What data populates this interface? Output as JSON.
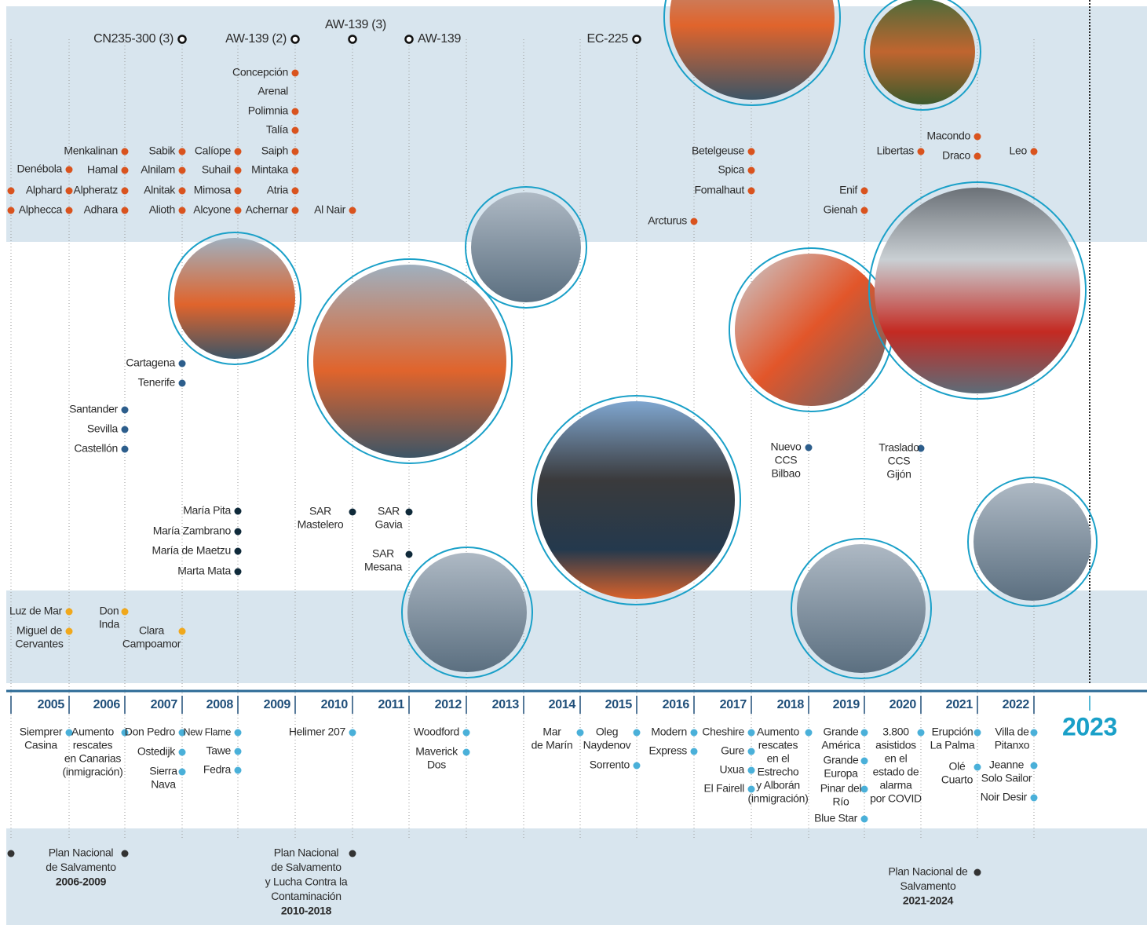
{
  "aircraft": [
    [
      "CN235-300 (3)"
    ],
    [
      "AW-139 (2)"
    ],
    [
      "AW-139 (3)"
    ],
    [
      "AW-139"
    ],
    [
      "EC-225"
    ]
  ],
  "vessels": [
    [
      "Denébola"
    ],
    [
      "Alphard"
    ],
    [
      "Alphecca"
    ],
    [
      "Menkalinan"
    ],
    [
      "Hamal"
    ],
    [
      "Alpheratz"
    ],
    [
      "Adhara"
    ],
    [
      "Sabik"
    ],
    [
      "Alnilam"
    ],
    [
      "Alnitak"
    ],
    [
      "Alioth"
    ],
    [
      "Calíope"
    ],
    [
      "Suhail"
    ],
    [
      "Mimosa"
    ],
    [
      "Alcyone"
    ],
    [
      "Concepción"
    ],
    [
      "Arenal"
    ],
    [
      "Polimnia"
    ],
    [
      "Talía"
    ],
    [
      "Saiph"
    ],
    [
      "Mintaka"
    ],
    [
      "Atria"
    ],
    [
      "Achernar"
    ],
    [
      "Al Nair"
    ],
    [
      "Arcturus"
    ],
    [
      "Betelgeuse"
    ],
    [
      "Spica"
    ],
    [
      "Fomalhaut"
    ],
    [
      "Enif"
    ],
    [
      "Gienah"
    ],
    [
      "Libertas"
    ],
    [
      "Macondo"
    ],
    [
      "Draco"
    ],
    [
      "Leo"
    ]
  ],
  "bases": [
    [
      "Cartagena"
    ],
    [
      "Tenerife"
    ],
    [
      "Santander"
    ],
    [
      "Sevilla"
    ],
    [
      "Castellón"
    ],
    [
      "Nuevo",
      "CCS",
      "Bilbao"
    ],
    [
      "Traslado",
      "CCS",
      "Gijón"
    ]
  ],
  "sar_boats": [
    [
      "María Pita"
    ],
    [
      "María Zambrano"
    ],
    [
      "María de Maetzu"
    ],
    [
      "Marta Mata"
    ],
    [
      "SAR",
      "Mastelero"
    ],
    [
      "SAR",
      "Gavia"
    ],
    [
      "SAR",
      "Mesana"
    ]
  ],
  "rescue_vessels": [
    [
      "Luz de Mar"
    ],
    [
      "Miguel de",
      "Cervantes"
    ],
    [
      "Don",
      "Inda"
    ],
    [
      "Clara",
      "Campoamor"
    ]
  ],
  "years": [
    "2005",
    "2006",
    "2007",
    "2008",
    "2009",
    "2010",
    "2011",
    "2012",
    "2013",
    "2014",
    "2015",
    "2016",
    "2017",
    "2018",
    "2019",
    "2020",
    "2021",
    "2022"
  ],
  "current_year": "2023",
  "events": [
    [
      "Siemprer",
      "Casina"
    ],
    [
      "Aumento",
      "rescates",
      "en Canarias",
      "(inmigración)"
    ],
    [
      "Don Pedro"
    ],
    [
      "Ostedijk"
    ],
    [
      "Sierra",
      "Nava"
    ],
    [
      "New Flame"
    ],
    [
      "Tawe"
    ],
    [
      "Fedra"
    ],
    [
      "Helimer 207"
    ],
    [
      "Woodford"
    ],
    [
      "Maverick",
      "Dos"
    ],
    [
      "Mar",
      "de Marín"
    ],
    [
      "Oleg",
      "Naydenov"
    ],
    [
      "Sorrento"
    ],
    [
      "Modern"
    ],
    [
      "Express"
    ],
    [
      "Cheshire"
    ],
    [
      "Gure"
    ],
    [
      "Uxua"
    ],
    [
      "El Fairell"
    ],
    [
      "Aumento",
      "rescates",
      "en el",
      "Estrecho",
      "y Alborán",
      "(inmigración)"
    ],
    [
      "Grande",
      "América"
    ],
    [
      "Grande",
      "Europa"
    ],
    [
      "Pinar del",
      "Río"
    ],
    [
      "Blue Star"
    ],
    [
      "3.800",
      "asistidos",
      "en el",
      "estado de",
      "alarma",
      "por COVID"
    ],
    [
      "Erupción",
      "La Palma"
    ],
    [
      "Olé",
      "Cuarto"
    ],
    [
      "Villa de",
      "Pitanxo"
    ],
    [
      "Jeanne",
      "Solo Sailor"
    ],
    [
      "Noir Desir"
    ]
  ],
  "plans": [
    {
      "label": [
        "Plan Nacional",
        "de Salvamento"
      ],
      "period": "2006-2009"
    },
    {
      "label": [
        "Plan Nacional",
        "de Salvamento",
        "y Lucha Contra la",
        "Contaminación"
      ],
      "period": "2010-2018"
    },
    {
      "label": [
        "Plan Nacional de",
        "Salvamento"
      ],
      "period": "2021-2024"
    }
  ]
}
